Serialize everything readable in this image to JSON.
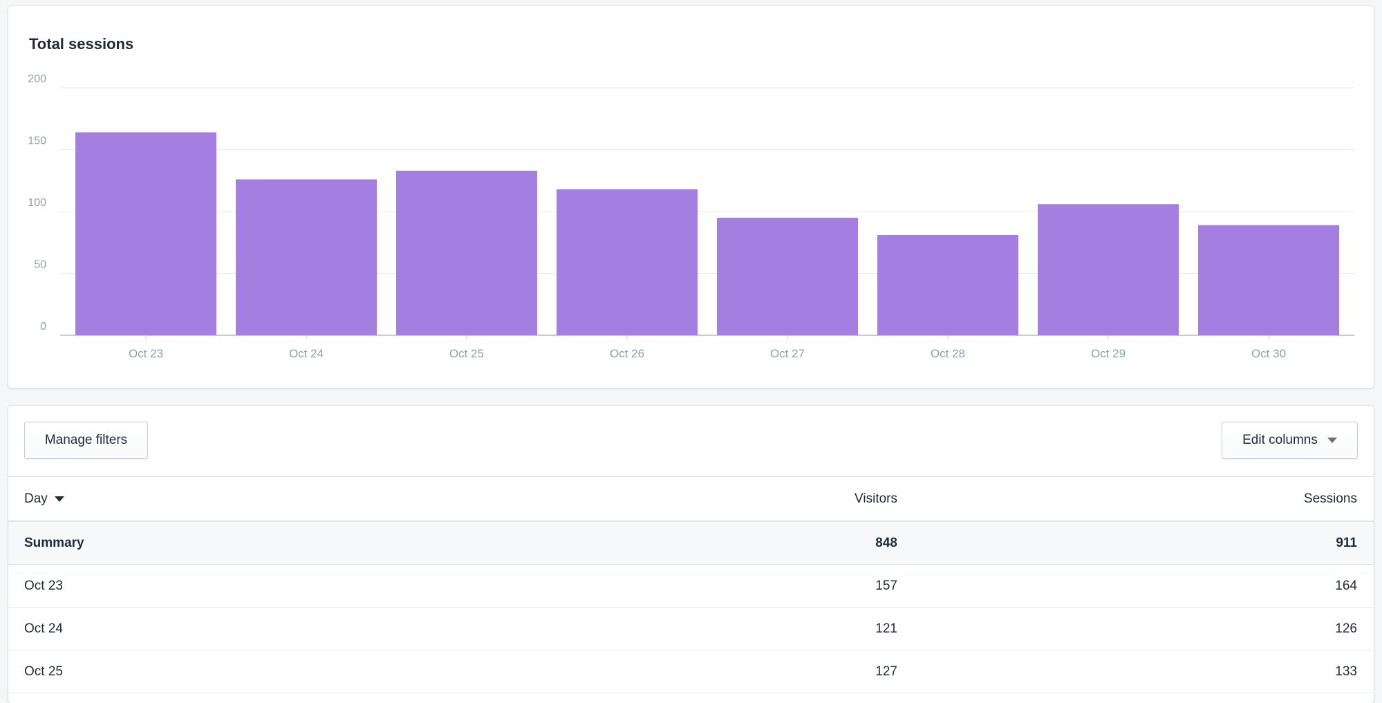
{
  "chart": {
    "title": "Total sessions",
    "bar_color": "#a47ee0"
  },
  "chart_data": {
    "type": "bar",
    "title": "Total sessions",
    "categories": [
      "Oct 23",
      "Oct 24",
      "Oct 25",
      "Oct 26",
      "Oct 27",
      "Oct 28",
      "Oct 29",
      "Oct 30"
    ],
    "values": [
      164,
      126,
      133,
      118,
      95,
      81,
      106,
      89
    ],
    "yticks": [
      "0",
      "50",
      "100",
      "150",
      "200"
    ],
    "ylim": [
      0,
      200
    ],
    "grid": true,
    "xlabel": "",
    "ylabel": ""
  },
  "toolbar": {
    "manage_filters_label": "Manage filters",
    "edit_columns_label": "Edit columns"
  },
  "table": {
    "columns": {
      "day": "Day",
      "visitors": "Visitors",
      "sessions": "Sessions"
    },
    "summary": {
      "label": "Summary",
      "visitors": "848",
      "sessions": "911"
    },
    "rows": [
      {
        "day": "Oct 23",
        "visitors": "157",
        "sessions": "164"
      },
      {
        "day": "Oct 24",
        "visitors": "121",
        "sessions": "126"
      },
      {
        "day": "Oct 25",
        "visitors": "127",
        "sessions": "133"
      }
    ]
  }
}
